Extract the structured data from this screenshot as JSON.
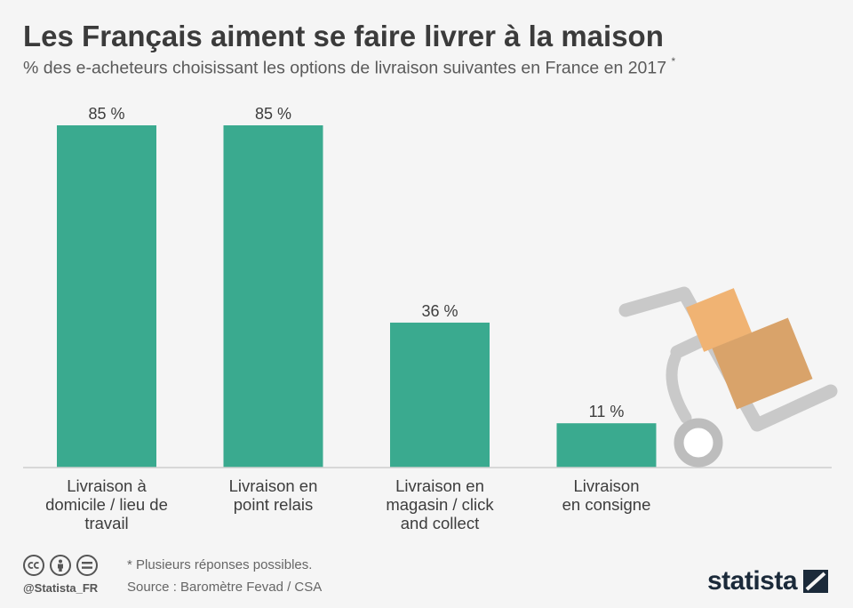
{
  "chart_data": {
    "type": "bar",
    "title": "Les Français aiment se faire livrer à la maison",
    "subtitle": "% des e-acheteurs choisissant les options de livraison suivantes en France en 2017",
    "subtitle_mark": "*",
    "categories": [
      [
        "Livraison à",
        "domicile / lieu de",
        "travail"
      ],
      [
        "Livraison en",
        "point relais"
      ],
      [
        "Livraison en",
        "magasin / click",
        "and collect"
      ],
      [
        "Livraison",
        "en consigne"
      ]
    ],
    "values": [
      85,
      85,
      36,
      11
    ],
    "value_labels": [
      "85 %",
      "85 %",
      "36 %",
      "11 %"
    ],
    "ylim": [
      0,
      85
    ],
    "bar_color": "#3aaa8f",
    "xlabel": "",
    "ylabel": ""
  },
  "footer": {
    "note": "* Plusieurs réponses possibles.",
    "source": "Source : Baromètre Fevad / CSA",
    "handle": "@Statista_FR",
    "logo": "statista",
    "cc_icons": [
      "cc",
      "by",
      "nd"
    ]
  },
  "colors": {
    "bar": "#3aaa8f",
    "title": "#3b3b3b",
    "illustration_frame": "#c9c9c9",
    "box_light": "#f0b373",
    "box_dark": "#d9a36a"
  }
}
